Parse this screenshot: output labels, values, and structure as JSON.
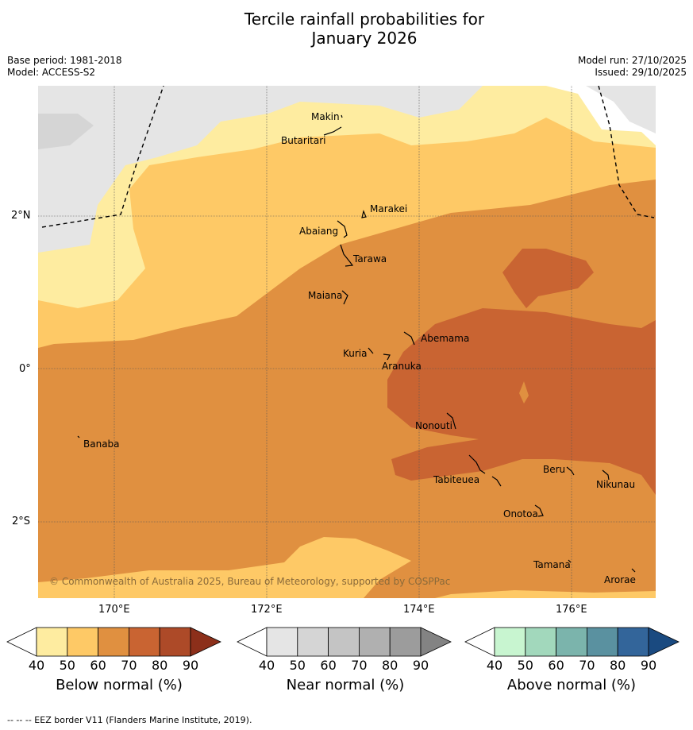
{
  "title": {
    "line1": "Tercile rainfall probabilities for",
    "line2": "January 2026"
  },
  "meta": {
    "base_period": "Base period: 1981-2018",
    "model": "Model: ACCESS-S2",
    "model_run": "Model run: 27/10/2025",
    "issued": "Issued: 29/10/2025"
  },
  "axes": {
    "lat_labels": [
      "2°N",
      "0°",
      "2°S"
    ],
    "lon_labels": [
      "170°E",
      "172°E",
      "174°E",
      "176°E"
    ]
  },
  "places": [
    {
      "name": "Makin"
    },
    {
      "name": "Butaritari"
    },
    {
      "name": "Marakei"
    },
    {
      "name": "Abaiang"
    },
    {
      "name": "Tarawa"
    },
    {
      "name": "Maiana"
    },
    {
      "name": "Abemama"
    },
    {
      "name": "Kuria"
    },
    {
      "name": "Aranuka"
    },
    {
      "name": "Banaba"
    },
    {
      "name": "Nonouti"
    },
    {
      "name": "Tabiteuea"
    },
    {
      "name": "Beru"
    },
    {
      "name": "Nikunau"
    },
    {
      "name": "Onotoa"
    },
    {
      "name": "Tamana"
    },
    {
      "name": "Arorae"
    }
  ],
  "copyright": "© Commonwealth of Australia 2025, Bureau of Meteorology, supported by COSPPac",
  "colorbars": [
    {
      "title": "Below normal (%)",
      "ticks": [
        "40",
        "50",
        "60",
        "70",
        "80",
        "90"
      ],
      "colors": [
        "#ffffff",
        "#feeca0",
        "#fec966",
        "#e09040",
        "#c96432",
        "#ad4a28",
        "#8c2f1a"
      ]
    },
    {
      "title": "Near normal (%)",
      "ticks": [
        "40",
        "50",
        "60",
        "70",
        "80",
        "90"
      ],
      "colors": [
        "#ffffff",
        "#e5e5e5",
        "#d5d5d5",
        "#c4c4c4",
        "#b0b0b0",
        "#9c9c9c",
        "#838383"
      ]
    },
    {
      "title": "Above normal (%)",
      "ticks": [
        "40",
        "50",
        "60",
        "70",
        "80",
        "90"
      ],
      "colors": [
        "#ffffff",
        "#c8f5d0",
        "#a2d8bc",
        "#7bb4ac",
        "#5a91a0",
        "#33659a",
        "#1a4a80"
      ]
    }
  ],
  "footer": "--  --  -- EEZ border V11 (Flanders Marine Institute, 2019)."
}
